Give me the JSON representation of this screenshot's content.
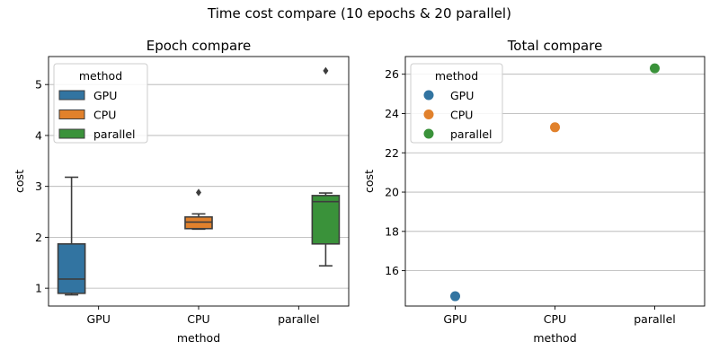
{
  "figure": {
    "title": "Time cost compare (10 epochs & 20 parallel)"
  },
  "colors": {
    "GPU": "#3274a1",
    "CPU": "#e1812c",
    "parallel": "#3a923a",
    "grid": "#b0b0b0",
    "box_line": "#3d3d3d"
  },
  "chart_data": [
    {
      "type": "box",
      "title": "Epoch compare",
      "xlabel": "method",
      "ylabel": "cost",
      "categories": [
        "GPU",
        "CPU",
        "parallel"
      ],
      "ylim": [
        0.65,
        5.55
      ],
      "yticks": [
        1,
        2,
        3,
        4,
        5
      ],
      "grid": "y",
      "legend": {
        "title": "method",
        "placement": "top-left",
        "entries": [
          "GPU",
          "CPU",
          "parallel"
        ]
      },
      "series": [
        {
          "name": "GPU",
          "whisker_low": 0.87,
          "q1": 0.9,
          "median": 1.18,
          "q3": 1.87,
          "whisker_high": 3.18,
          "outliers": []
        },
        {
          "name": "CPU",
          "whisker_low": 2.16,
          "q1": 2.17,
          "median": 2.3,
          "q3": 2.4,
          "whisker_high": 2.46,
          "outliers": [
            2.88
          ]
        },
        {
          "name": "parallel",
          "whisker_low": 1.44,
          "q1": 1.87,
          "median": 2.7,
          "q3": 2.82,
          "whisker_high": 2.87,
          "outliers": [
            5.27
          ]
        }
      ]
    },
    {
      "type": "scatter",
      "title": "Total compare",
      "xlabel": "method",
      "ylabel": "cost",
      "categories": [
        "GPU",
        "CPU",
        "parallel"
      ],
      "ylim": [
        14.2,
        26.9
      ],
      "yticks": [
        16,
        18,
        20,
        22,
        24,
        26
      ],
      "grid": "y",
      "legend": {
        "title": "method",
        "placement": "top-left",
        "entries": [
          "GPU",
          "CPU",
          "parallel"
        ]
      },
      "series": [
        {
          "name": "GPU",
          "x": "GPU",
          "y": 14.7
        },
        {
          "name": "CPU",
          "x": "CPU",
          "y": 23.3
        },
        {
          "name": "parallel",
          "x": "parallel",
          "y": 26.3
        }
      ]
    }
  ]
}
